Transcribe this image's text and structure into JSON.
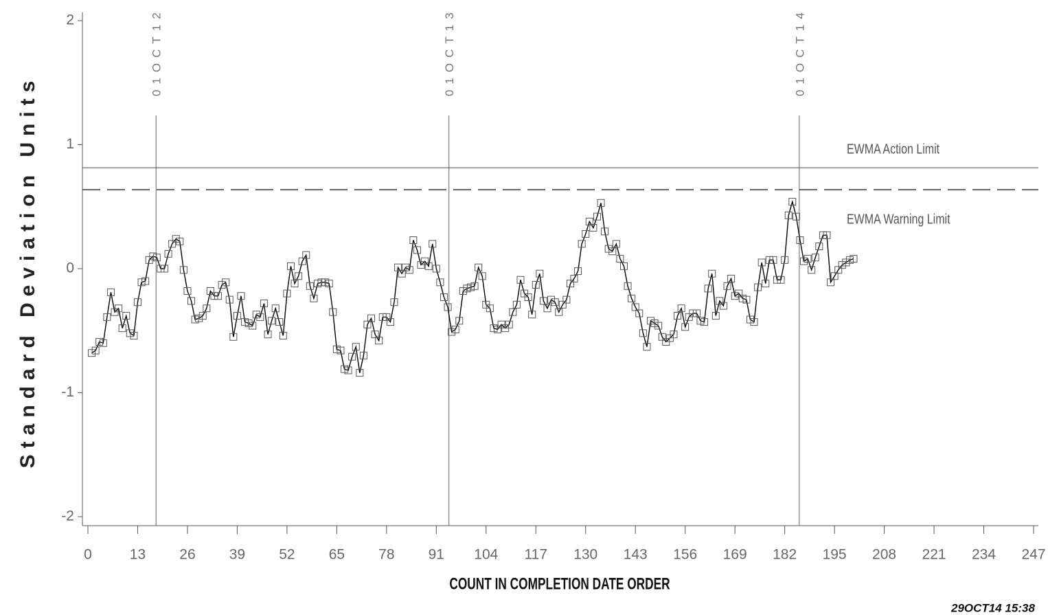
{
  "chart_data": {
    "type": "line",
    "y_label": "Standard Deviation Units",
    "x_label": "COUNT IN COMPLETION DATE ORDER",
    "footer": "29OCT14 15:38",
    "xlim": [
      0,
      247
    ],
    "ylim": [
      -2.07,
      2.07
    ],
    "xticks": [
      0,
      13,
      26,
      39,
      52,
      65,
      78,
      91,
      104,
      117,
      130,
      143,
      156,
      169,
      182,
      195,
      208,
      221,
      234,
      247
    ],
    "yticks": [
      -2,
      -1,
      0,
      1,
      2
    ],
    "color": "#000000",
    "marker_color": "#555555",
    "annotations": [
      {
        "x": 17.8,
        "label": "01OCT12"
      },
      {
        "x": 94.3,
        "label": "01OCT13"
      },
      {
        "x": 185.8,
        "label": "01OCT14"
      }
    ],
    "limits": [
      {
        "name": "EWMA Action Limit",
        "value": 0.814,
        "style": "solid"
      },
      {
        "name": "EWMA Warning Limit",
        "value": 0.637,
        "style": "dashed"
      }
    ],
    "x": [
      1,
      2,
      3,
      4,
      5,
      6,
      7,
      8,
      9,
      10,
      11,
      12,
      13,
      14,
      15,
      16,
      17,
      18,
      19,
      20,
      21,
      22,
      23,
      24,
      25,
      26,
      27,
      28,
      29,
      30,
      31,
      32,
      33,
      34,
      35,
      36,
      37,
      38,
      39,
      40,
      41,
      42,
      43,
      44,
      45,
      46,
      47,
      48,
      49,
      50,
      51,
      52,
      53,
      54,
      55,
      56,
      57,
      58,
      59,
      60,
      61,
      62,
      63,
      64,
      65,
      66,
      67,
      68,
      69,
      70,
      71,
      72,
      73,
      74,
      75,
      76,
      77,
      78,
      79,
      80,
      81,
      82,
      83,
      84,
      85,
      86,
      87,
      88,
      89,
      90,
      91,
      92,
      93,
      94,
      95,
      96,
      97,
      98,
      99,
      100,
      101,
      102,
      103,
      104,
      105,
      106,
      107,
      108,
      109,
      110,
      111,
      112,
      113,
      114,
      115,
      116,
      117,
      118,
      119,
      120,
      121,
      122,
      123,
      124,
      125,
      126,
      127,
      128,
      129,
      130,
      131,
      132,
      133,
      134,
      135,
      136,
      137,
      138,
      139,
      140,
      141,
      142,
      143,
      144,
      145,
      146,
      147,
      148,
      149,
      150,
      151,
      152,
      153,
      154,
      155,
      156,
      157,
      158,
      159,
      160,
      161,
      162,
      163,
      164,
      165,
      166,
      167,
      168,
      169,
      170,
      171,
      172,
      173,
      174,
      175,
      176,
      177,
      178,
      179,
      180,
      181,
      182,
      183,
      184,
      185,
      186,
      187,
      188,
      189,
      190,
      191,
      192,
      193,
      194,
      195,
      196,
      197,
      198,
      199,
      200
    ],
    "values": [
      -0.68,
      -0.66,
      -0.59,
      -0.6,
      -0.39,
      -0.19,
      -0.35,
      -0.32,
      -0.48,
      -0.38,
      -0.52,
      -0.54,
      -0.27,
      -0.11,
      -0.1,
      0.07,
      0.1,
      0.09,
      0,
      0,
      0.12,
      0.2,
      0.24,
      0.22,
      -0.01,
      -0.18,
      -0.26,
      -0.41,
      -0.4,
      -0.38,
      -0.32,
      -0.18,
      -0.22,
      -0.22,
      -0.13,
      -0.11,
      -0.25,
      -0.55,
      -0.38,
      -0.22,
      -0.43,
      -0.44,
      -0.46,
      -0.37,
      -0.39,
      -0.28,
      -0.53,
      -0.42,
      -0.32,
      -0.43,
      -0.54,
      -0.2,
      0.02,
      -0.12,
      -0.06,
      0.06,
      0.11,
      -0.14,
      -0.24,
      -0.12,
      -0.11,
      -0.11,
      -0.12,
      -0.35,
      -0.65,
      -0.66,
      -0.81,
      -0.82,
      -0.71,
      -0.63,
      -0.84,
      -0.7,
      -0.45,
      -0.4,
      -0.53,
      -0.58,
      -0.39,
      -0.39,
      -0.43,
      -0.27,
      0.01,
      -0.04,
      0.01,
      -0.01,
      0.23,
      0.15,
      0.03,
      0.06,
      0.02,
      0.2,
      0,
      -0.11,
      -0.23,
      -0.31,
      -0.51,
      -0.49,
      -0.42,
      -0.18,
      -0.16,
      -0.15,
      -0.14,
      0.01,
      -0.06,
      -0.29,
      -0.32,
      -0.48,
      -0.49,
      -0.45,
      -0.48,
      -0.45,
      -0.35,
      -0.29,
      -0.09,
      -0.2,
      -0.23,
      -0.37,
      -0.13,
      -0.04,
      -0.26,
      -0.32,
      -0.25,
      -0.27,
      -0.35,
      -0.29,
      -0.25,
      -0.12,
      -0.08,
      -0.02,
      0.2,
      0.28,
      0.38,
      0.33,
      0.42,
      0.53,
      0.3,
      0.16,
      0.14,
      0.2,
      0.08,
      0.02,
      -0.14,
      -0.24,
      -0.31,
      -0.36,
      -0.52,
      -0.63,
      -0.42,
      -0.44,
      -0.46,
      -0.55,
      -0.59,
      -0.56,
      -0.53,
      -0.38,
      -0.32,
      -0.47,
      -0.39,
      -0.36,
      -0.36,
      -0.42,
      -0.43,
      -0.16,
      -0.04,
      -0.38,
      -0.26,
      -0.3,
      -0.14,
      -0.08,
      -0.22,
      -0.2,
      -0.24,
      -0.25,
      -0.41,
      -0.43,
      -0.15,
      0.05,
      -0.12,
      0.07,
      0.07,
      -0.09,
      -0.09,
      0.07,
      0.43,
      0.54,
      0.42,
      0.23,
      0.06,
      0.08,
      -0.01,
      0.09,
      0.18,
      0.27,
      0.27,
      -0.11,
      -0.06,
      -0.01,
      0.03,
      0.05,
      0.07,
      0.08
    ]
  }
}
